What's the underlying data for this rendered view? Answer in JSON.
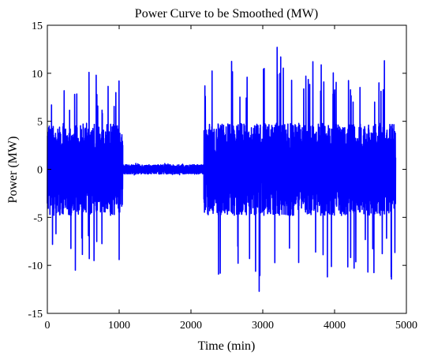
{
  "chart_data": {
    "type": "line",
    "title": "Power Curve to be Smoothed (MW)",
    "xlabel": "Time (min)",
    "ylabel": "Power (MW)",
    "xlim": [
      0,
      5000
    ],
    "ylim": [
      -15,
      15
    ],
    "xticks": [
      0,
      1000,
      2000,
      3000,
      4000,
      5000
    ],
    "yticks": [
      -15,
      -10,
      -5,
      0,
      5,
      10,
      15
    ],
    "xtick_labels": [
      "0",
      "1000",
      "2000",
      "3000",
      "4000",
      "5000"
    ],
    "ytick_labels": [
      "-15",
      "-10",
      "-5",
      "0",
      "5",
      "10",
      "15"
    ],
    "grid": false,
    "series": [
      {
        "color": "#0000ff",
        "segments": [
          {
            "x_start": 0,
            "x_end": 1050,
            "typical_amplitude": 4,
            "max": 10.1,
            "min": -10.5
          },
          {
            "x_start": 1050,
            "x_end": 2180,
            "typical_amplitude": 0.4,
            "max": 0.7,
            "min": -0.6
          },
          {
            "x_start": 2180,
            "x_end": 4850,
            "typical_amplitude": 4,
            "max": 12.7,
            "min": -12.7
          }
        ],
        "peaks": [
          {
            "x": 380,
            "y": 7.8
          },
          {
            "x": 580,
            "y": 10.1
          },
          {
            "x": 680,
            "y": 9.8
          },
          {
            "x": 2200,
            "y": 7.6
          },
          {
            "x": 3020,
            "y": 10.5
          },
          {
            "x": 3200,
            "y": 12.7
          },
          {
            "x": 3250,
            "y": 11.7
          },
          {
            "x": 3600,
            "y": 9.7
          },
          {
            "x": 4000,
            "y": 7.7
          }
        ],
        "troughs": [
          {
            "x": 390,
            "y": -10.5
          },
          {
            "x": 650,
            "y": -9.5
          },
          {
            "x": 1000,
            "y": -9.4
          },
          {
            "x": 2950,
            "y": -12.7
          },
          {
            "x": 3500,
            "y": -9.7
          },
          {
            "x": 3900,
            "y": -11.2
          }
        ]
      }
    ]
  }
}
